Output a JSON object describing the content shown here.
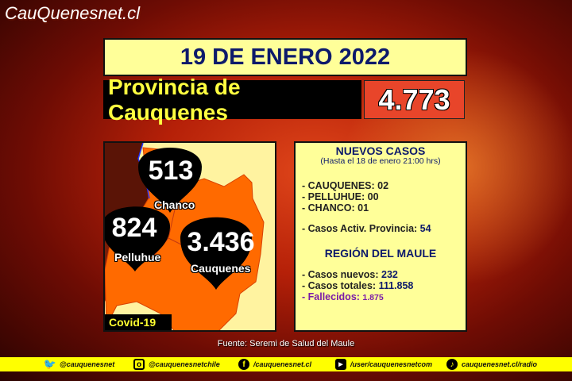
{
  "brand": {
    "logo": "CauQuenesnet.cl"
  },
  "header": {
    "date": "19 DE ENERO 2022",
    "province": "Provincia de Cauquenes",
    "province_total": "4.773"
  },
  "map": {
    "communes": [
      {
        "name": "Chanco",
        "cases": "513"
      },
      {
        "name": "Pelluhue",
        "cases": "824"
      },
      {
        "name": "Cauquenes",
        "cases": "3.436"
      }
    ],
    "badge": "Covid-19",
    "colors": {
      "region": "#ff6a00",
      "background": "#fff3a0",
      "pin": "#000000"
    }
  },
  "info": {
    "title": "NUEVOS CASOS",
    "subtitle": "(Hasta el 18 de enero  21:00 hrs)",
    "new_cases": [
      "- CAUQUENES: 02",
      "- PELLUHUE: 00",
      "- CHANCO: 01"
    ],
    "active_label": "- Casos Activ. Provincia: ",
    "active_value": "54",
    "region_title": "REGIÓN DEL MAULE",
    "region_new_label": "- Casos nuevos: ",
    "region_new_value": "232",
    "region_total_label": "- Casos totales: ",
    "region_total_value": "111.858",
    "deaths_label": "- Fallecidos: ",
    "deaths_value": "1.875"
  },
  "source": "Fuente: Seremi de Salud del Maule",
  "footer": [
    {
      "icon": "twitter-icon",
      "label": "@cauquenesnet"
    },
    {
      "icon": "instagram-icon",
      "label": "@cauquenesnetchile"
    },
    {
      "icon": "facebook-icon",
      "label": "/cauquenesnet.cl"
    },
    {
      "icon": "youtube-icon",
      "label": "/user/cauquenesnetcom"
    },
    {
      "icon": "radio-icon",
      "label": "cauquenesnet.cl/radio"
    }
  ]
}
